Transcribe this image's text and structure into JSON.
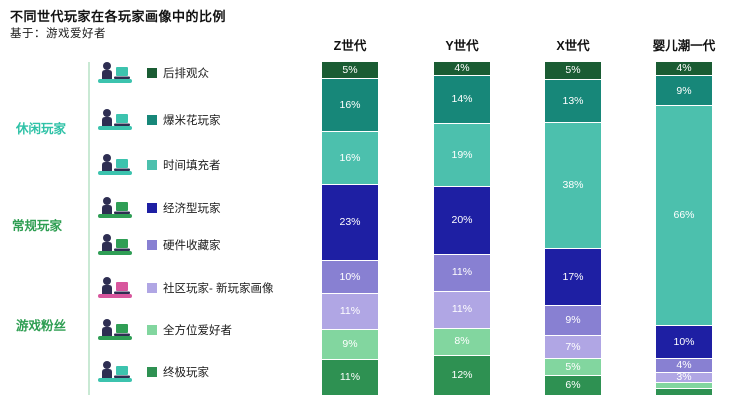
{
  "title": "不同世代玩家在各玩家画像中的比例",
  "subtitle": "基于：游戏爱好者",
  "legend": {
    "groups": [
      {
        "label": "休闲玩家",
        "color": "#2fc2a7"
      },
      {
        "label": "常规玩家",
        "color": "#2e9e52"
      },
      {
        "label": "游戏粉丝",
        "color": "#2e9e52"
      }
    ],
    "items": [
      {
        "label": "后排观众",
        "color": "#1a5c33",
        "icon": "backseat-viewer-icon"
      },
      {
        "label": "爆米花玩家",
        "color": "#178779",
        "icon": "popcorn-player-icon"
      },
      {
        "label": "时间填充者",
        "color": "#4cc0ad",
        "icon": "time-filler-icon"
      },
      {
        "label": "经济型玩家",
        "color": "#1e1fa3",
        "icon": "budget-player-icon"
      },
      {
        "label": "硬件收藏家",
        "color": "#8880d2",
        "icon": "hardware-collector-icon"
      },
      {
        "label": "社区玩家- 新玩家画像",
        "color": "#b0a6e4",
        "icon": "community-player-icon"
      },
      {
        "label": "全方位爱好者",
        "color": "#82d69f",
        "icon": "allround-enthusiast-icon"
      },
      {
        "label": "终极玩家",
        "color": "#2e9152",
        "icon": "ultimate-gamer-icon"
      }
    ]
  },
  "chart_data": {
    "type": "bar",
    "stacked": true,
    "unit": "%",
    "columns": [
      "Z世代",
      "Y世代",
      "X世代",
      "婴儿潮一代"
    ],
    "series": [
      {
        "name": "后排观众",
        "color": "#1a5c33",
        "values": [
          5,
          4,
          5,
          4
        ]
      },
      {
        "name": "爆米花玩家",
        "color": "#178779",
        "values": [
          16,
          14,
          13,
          9
        ]
      },
      {
        "name": "时间填充者",
        "color": "#4cc0ad",
        "values": [
          16,
          19,
          38,
          66
        ]
      },
      {
        "name": "经济型玩家",
        "color": "#1e1fa3",
        "values": [
          23,
          20,
          17,
          10
        ]
      },
      {
        "name": "硬件收藏家",
        "color": "#8880d2",
        "values": [
          10,
          11,
          9,
          4
        ]
      },
      {
        "name": "社区玩家- 新玩家画像",
        "color": "#b0a6e4",
        "values": [
          11,
          11,
          7,
          3
        ]
      },
      {
        "name": "全方位爱好者",
        "color": "#82d69f",
        "values": [
          9,
          8,
          5,
          2
        ]
      },
      {
        "name": "终极玩家",
        "color": "#2e9152",
        "values": [
          11,
          12,
          6,
          2
        ]
      }
    ]
  }
}
